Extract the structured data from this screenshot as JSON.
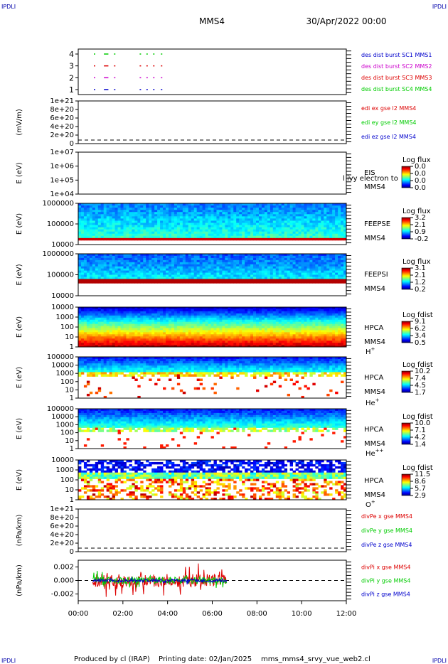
{
  "corner_label": "IPDLI",
  "header": {
    "mission": "MMS4",
    "datetime": "30/Apr/2022 00:00"
  },
  "footer": {
    "produced_by": "Produced by cl (IRAP)",
    "printing_date": "Printing date: 02/Jan/2025",
    "script": "mms_mms4_srvy_vue_web2.cl"
  },
  "time_axis": {
    "start_hour": 0,
    "end_hour": 12,
    "labels": [
      "00:00",
      "02:00",
      "04:00",
      "06:00",
      "08:00",
      "10:00",
      "12:00"
    ]
  },
  "colors": {
    "red": "#dd0000",
    "green": "#00cc00",
    "blue": "#0000cc",
    "magenta": "#cc00cc",
    "ink": "#000000"
  },
  "chart_data": [
    {
      "type": "scatter",
      "panel": "burst",
      "yticks": [
        "4",
        "3",
        "2",
        "1"
      ],
      "legend": [
        {
          "text": "des dist burst SC1 MMS1",
          "color": "#0000cc"
        },
        {
          "text": "des dist burst SC2 MMS2",
          "color": "#cc00cc"
        },
        {
          "text": "des dist burst SC3 MMS3",
          "color": "#dd0000"
        },
        {
          "text": "des dist burst SC4 MMS4",
          "color": "#00cc00"
        }
      ],
      "series": [
        {
          "level": 4,
          "color": "#00cc00",
          "intervals": [
            [
              0.7,
              0.75
            ],
            [
              1.15,
              1.35
            ],
            [
              1.6,
              1.65
            ],
            [
              2.75,
              2.8
            ],
            [
              3.05,
              3.1
            ],
            [
              3.35,
              3.4
            ],
            [
              3.7,
              3.75
            ]
          ]
        },
        {
          "level": 3,
          "color": "#dd0000",
          "intervals": [
            [
              0.7,
              0.75
            ],
            [
              1.15,
              1.35
            ],
            [
              1.6,
              1.65
            ],
            [
              2.75,
              2.8
            ],
            [
              3.05,
              3.1
            ],
            [
              3.35,
              3.4
            ],
            [
              3.7,
              3.75
            ]
          ]
        },
        {
          "level": 2,
          "color": "#cc00cc",
          "intervals": [
            [
              0.7,
              0.75
            ],
            [
              1.15,
              1.35
            ],
            [
              1.6,
              1.65
            ],
            [
              2.75,
              2.8
            ],
            [
              3.05,
              3.1
            ],
            [
              3.35,
              3.4
            ],
            [
              3.7,
              3.75
            ]
          ]
        },
        {
          "level": 1,
          "color": "#0000cc",
          "intervals": [
            [
              0.7,
              0.75
            ],
            [
              1.15,
              1.35
            ],
            [
              1.6,
              1.65
            ],
            [
              2.75,
              2.8
            ],
            [
              3.05,
              3.1
            ],
            [
              3.35,
              3.4
            ],
            [
              3.7,
              3.75
            ]
          ]
        }
      ]
    },
    {
      "type": "line",
      "panel": "edi",
      "ylabel": "(mV/m)",
      "yticks": [
        "1e+21",
        "8e+20",
        "6e+20",
        "4e+20",
        "2e+20",
        "0"
      ],
      "legend": [
        {
          "text": "edi ex gse l2 MMS4",
          "color": "#dd0000"
        },
        {
          "text": "edi ey gse l2 MMS4",
          "color": "#00cc00"
        },
        {
          "text": "edi ez gse l2 MMS4",
          "color": "#0000cc"
        }
      ]
    },
    {
      "type": "heatmap",
      "panel": "eis",
      "ylabel": "E (eV)",
      "yticks": [
        "1e+07",
        "1e+06",
        "1e+05",
        "1e+04"
      ],
      "instrument": [
        "EIS",
        "MMS4"
      ],
      "overlay_label": "l ivy electron to",
      "colorbar": {
        "title": "Log flux",
        "ticks": [
          "0.0",
          "0.0",
          "0.0",
          "0.0"
        ]
      }
    },
    {
      "type": "heatmap",
      "panel": "feepse",
      "ylabel": "E (eV)",
      "yticks": [
        "1000000",
        "100000",
        "10000"
      ],
      "instrument": [
        "FEEPSE",
        "MMS4"
      ],
      "colorbar": {
        "title": "Log flux",
        "ticks": [
          "3.2",
          "2.1",
          "0.9",
          "-0.2"
        ]
      }
    },
    {
      "type": "heatmap",
      "panel": "feepsi",
      "ylabel": "E (eV)",
      "yticks": [
        "1000000",
        "100000",
        "10000"
      ],
      "instrument": [
        "FEEPSI",
        "MMS4"
      ],
      "colorbar": {
        "title": "Log flux",
        "ticks": [
          "3.1",
          "2.1",
          "1.2",
          "0.2"
        ]
      }
    },
    {
      "type": "heatmap",
      "panel": "hpca_h",
      "ylabel": "E (eV)",
      "yticks": [
        "10000",
        "1000",
        "100",
        "10",
        "1"
      ],
      "instrument": [
        "HPCA",
        "MMS4"
      ],
      "species": "H",
      "charge": "+",
      "colorbar": {
        "title": "Log fdist",
        "ticks": [
          "9.1",
          "6.2",
          "3.4",
          "0.5"
        ]
      }
    },
    {
      "type": "heatmap",
      "panel": "hpca_he",
      "ylabel": "E (eV)",
      "yticks": [
        "100000",
        "10000",
        "1000",
        "100",
        "10",
        "1"
      ],
      "instrument": [
        "HPCA",
        "MMS4"
      ],
      "species": "He",
      "charge": "+",
      "colorbar": {
        "title": "Log fdist",
        "ticks": [
          "10.2",
          "7.4",
          "4.5",
          "1.7"
        ]
      }
    },
    {
      "type": "heatmap",
      "panel": "hpca_hepp",
      "ylabel": "E (eV)",
      "yticks": [
        "100000",
        "10000",
        "1000",
        "100",
        "10",
        "1"
      ],
      "instrument": [
        "HPCA",
        "MMS4"
      ],
      "species": "He",
      "charge": "++",
      "colorbar": {
        "title": "Log fdist",
        "ticks": [
          "10.0",
          "7.1",
          "4.2",
          "1.4"
        ]
      }
    },
    {
      "type": "heatmap",
      "panel": "hpca_o",
      "ylabel": "E (eV)",
      "yticks": [
        "10000",
        "1000",
        "100",
        "10",
        "1"
      ],
      "instrument": [
        "HPCA",
        "MMS4"
      ],
      "species": "O",
      "charge": "+",
      "colorbar": {
        "title": "Log fdist",
        "ticks": [
          "11.5",
          "8.6",
          "5.7",
          "2.9"
        ]
      }
    },
    {
      "type": "line",
      "panel": "divpe",
      "ylabel": "(nPa/km)",
      "yticks": [
        "1e+21",
        "8e+20",
        "6e+20",
        "4e+20",
        "2e+20",
        "0"
      ],
      "legend": [
        {
          "text": "divPe x gse MMS4",
          "color": "#dd0000"
        },
        {
          "text": "divPe y gse MMS4",
          "color": "#00cc00"
        },
        {
          "text": "divPe z gse MMS4",
          "color": "#0000cc"
        }
      ]
    },
    {
      "type": "line",
      "panel": "divpi",
      "ylabel": "(nPa/km)",
      "yticks": [
        "0.002",
        "0.000",
        "-0.002"
      ],
      "ylim": [
        -0.003,
        0.003
      ],
      "x_range_hours": [
        0.65,
        6.65
      ],
      "legend": [
        {
          "text": "divPi x gse MMS4",
          "color": "#dd0000"
        },
        {
          "text": "divPi y gse MMS4",
          "color": "#00cc00"
        },
        {
          "text": "divPi z gse MMS4",
          "color": "#0000cc"
        }
      ]
    }
  ]
}
